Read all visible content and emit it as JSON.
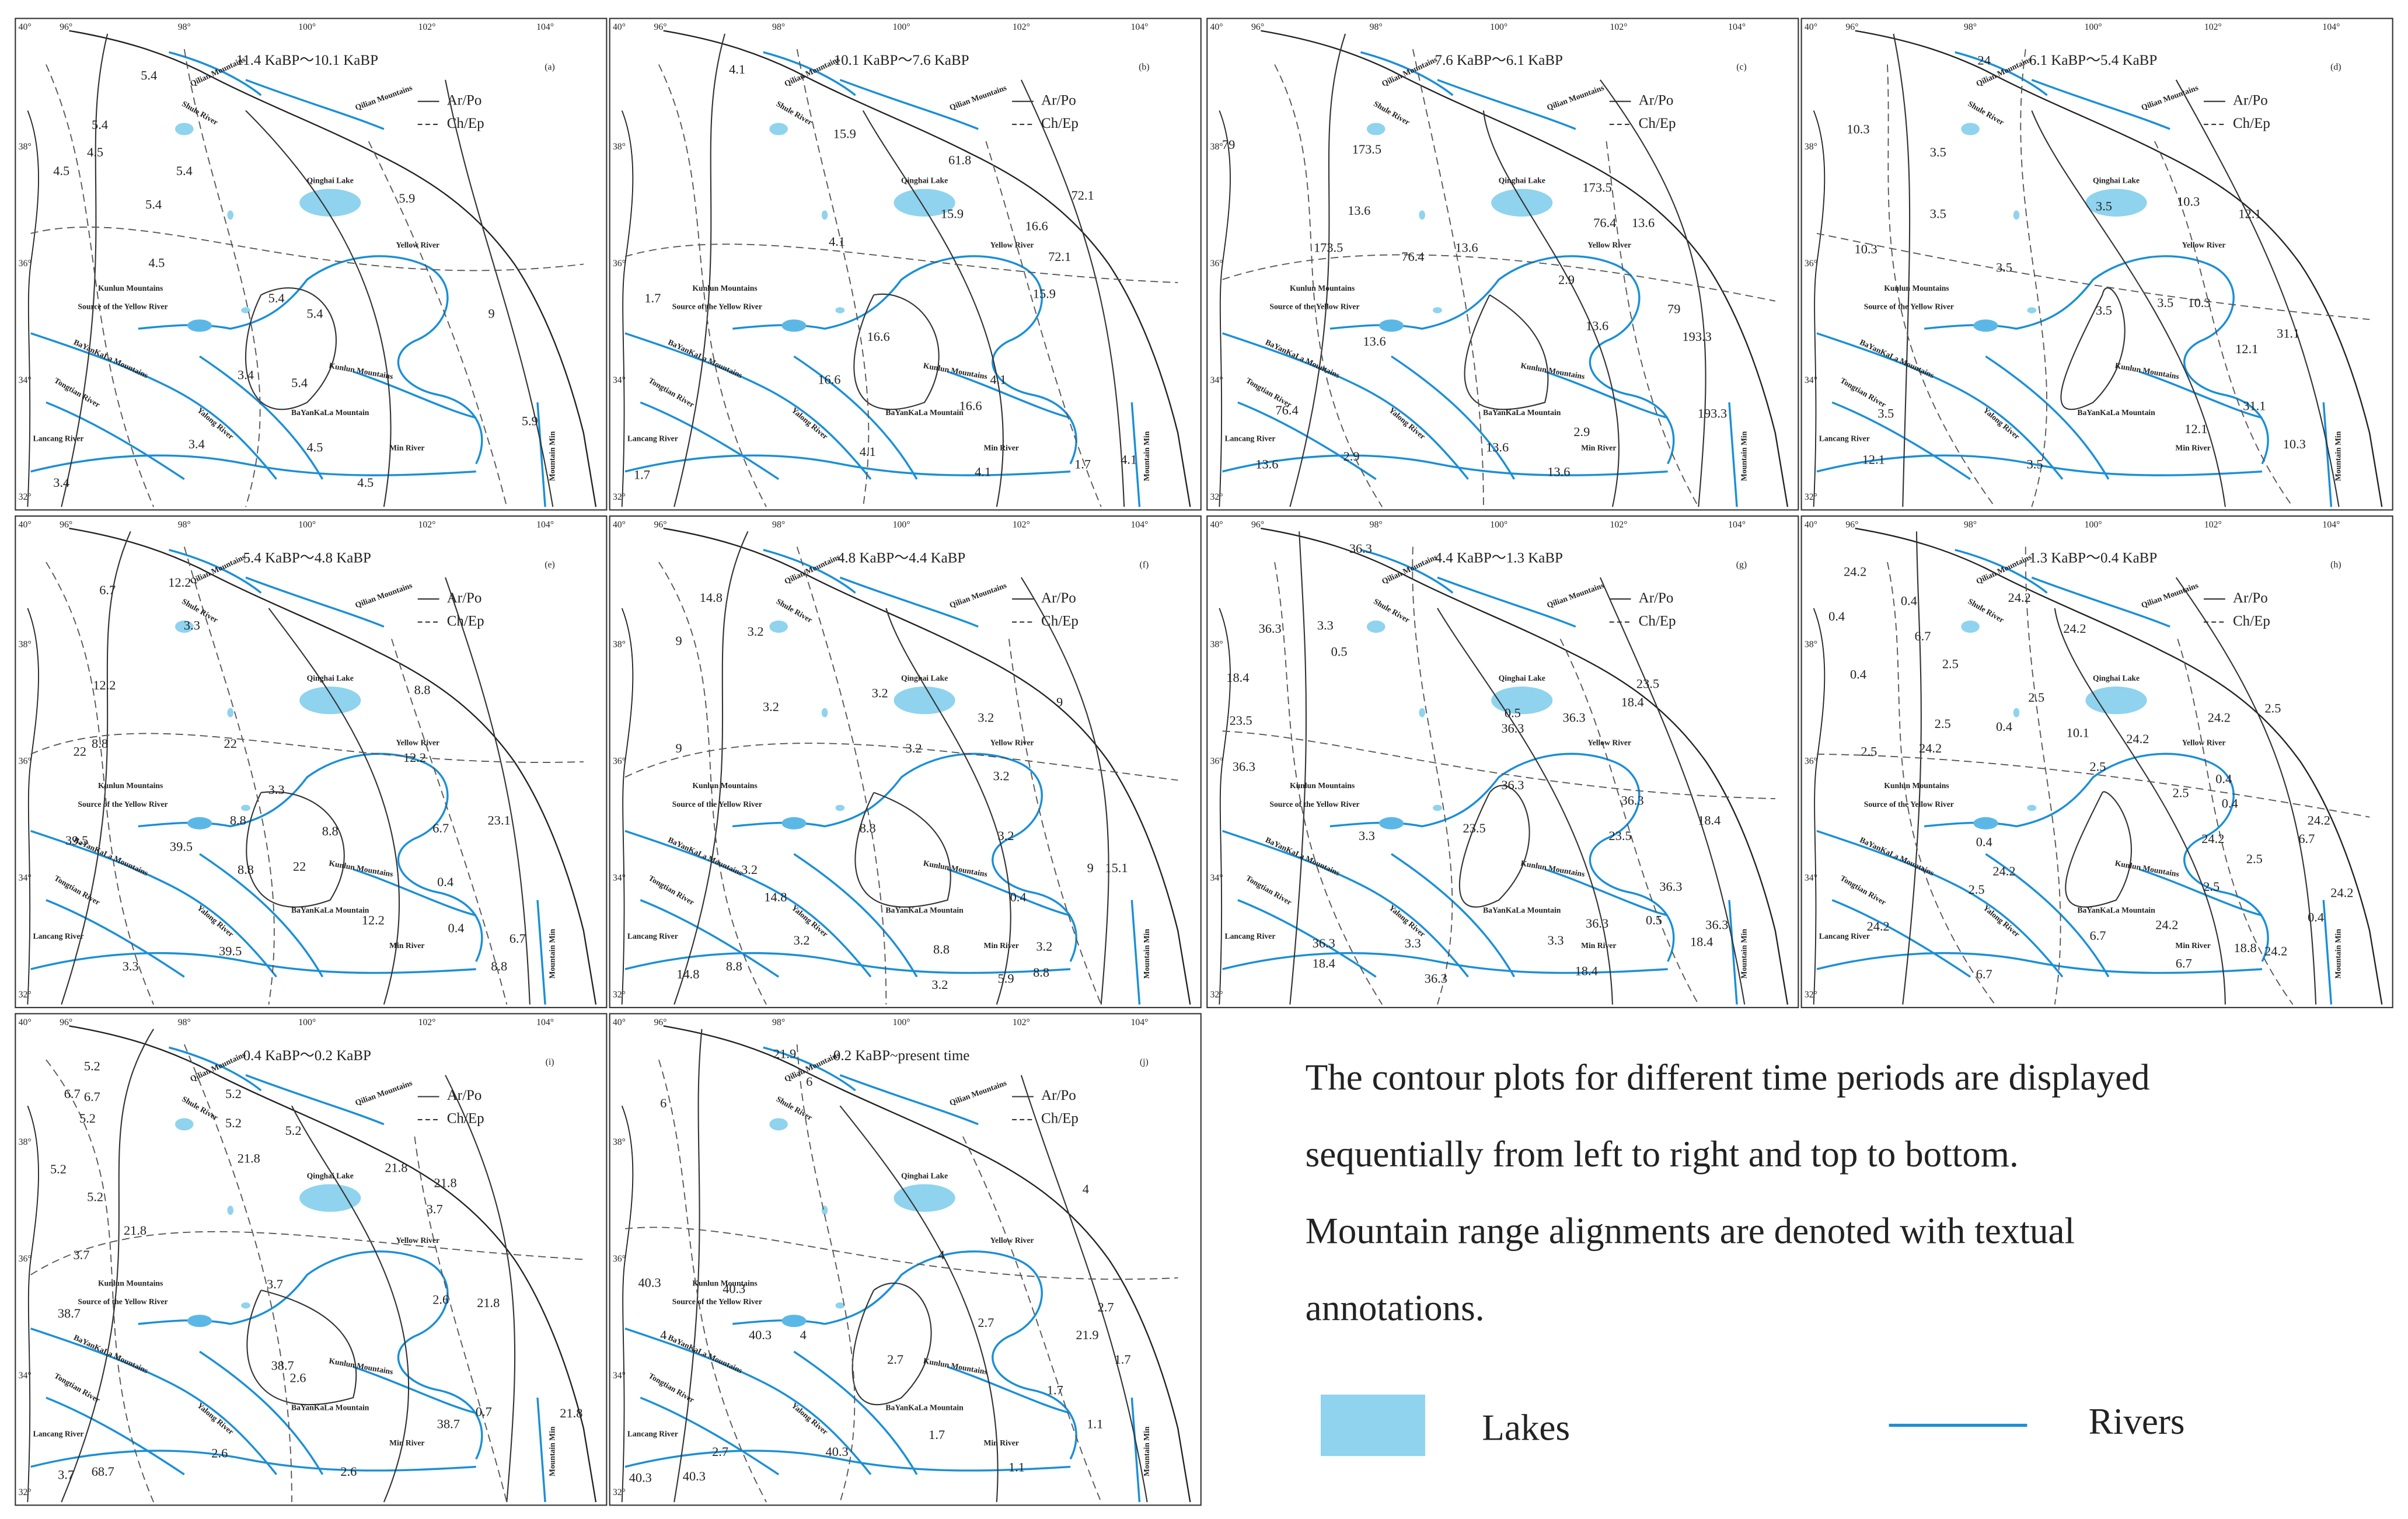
{
  "axes": {
    "lat_labels": [
      "40°",
      "38°",
      "36°",
      "34°",
      "32°"
    ],
    "lon_labels": [
      "96°",
      "98°",
      "100°",
      "102°",
      "104°"
    ]
  },
  "legend": [
    "Ar/Po",
    "Ch/Ep"
  ],
  "place_names": [
    "Qilian Mountains",
    "Qilian Mountains",
    "Shule River",
    "Qinghai Lake",
    "Yellow River",
    "Kunlun Mountains",
    "Source of the Yellow River",
    "BaYanKaLa Mountains",
    "Kunlun Mountains",
    "Tongtian River",
    "Yalong River",
    "BaYanKaLa Mountain",
    "Min River",
    "Lancang River",
    "Mountain Min"
  ],
  "panels": [
    {
      "title": "11.4 KaBP～10.1 KaBP",
      "label": "(a)",
      "contours": [
        "5.4",
        "5.4",
        "4.5",
        "5.4",
        "4.5",
        "5.4",
        "5.9",
        "4.5",
        "5.4",
        "5.4",
        "3.4",
        "5.4",
        "3.4",
        "4.5",
        "4.5",
        "5.9",
        "9",
        "3.4"
      ]
    },
    {
      "title": "10.1 KaBP～7.6 KaBP",
      "label": "(b)",
      "contours": [
        "4.1",
        "15.9",
        "1.7",
        "4.1",
        "61.8",
        "15.9",
        "72.1",
        "16.6",
        "72.1",
        "15.9",
        "16.6",
        "16.6",
        "4.1",
        "16.6",
        "4.1",
        "4.1",
        "1.7",
        "4.1",
        "1.7"
      ]
    },
    {
      "title": "7.6 KaBP～6.1 KaBP",
      "label": "(c)",
      "contours": [
        "173.5",
        "13.6",
        "79",
        "173.5",
        "76.4",
        "13.6",
        "173.5",
        "76.4",
        "13.6",
        "2.9",
        "13.6",
        "79",
        "193.3",
        "13.6",
        "76.4",
        "13.6",
        "2.9",
        "13.6",
        "193.3",
        "13.6",
        "2.9"
      ]
    },
    {
      "title": "6.1 KaBP～5.4 KaBP",
      "label": "(d)",
      "contours": [
        "24",
        "10.3",
        "3.5",
        "3.5",
        "3.5",
        "10.3",
        "12.1",
        "10.3",
        "3.5",
        "3.5",
        "3.5",
        "10.3",
        "31.1",
        "12.1",
        "3.5",
        "31.1",
        "12.1",
        "12.1",
        "10.3",
        "3.5"
      ]
    },
    {
      "title": "5.4 KaBP～4.8 KaBP",
      "label": "(e)",
      "contours": [
        "6.7",
        "12.2",
        "3.3",
        "12.2",
        "8.8",
        "22",
        "22",
        "8.8",
        "12.2",
        "3.3",
        "6.7",
        "23.1",
        "8.8",
        "39.5",
        "39.5",
        "8.8",
        "8.8",
        "22",
        "0.4",
        "12.2",
        "0.4",
        "6.7",
        "39.5",
        "8.8",
        "3.3"
      ]
    },
    {
      "title": "4.8 KaBP～4.4 KaBP",
      "label": "(f)",
      "contours": [
        "14.8",
        "3.2",
        "9",
        "3.2",
        "3.2",
        "3.2",
        "9",
        "3.2",
        "3.2",
        "9",
        "8.8",
        "3.2",
        "3.2",
        "14.8",
        "0.4",
        "9",
        "15.1",
        "3.2",
        "8.8",
        "3.2",
        "14.8",
        "8.8",
        "8.8",
        "5.9",
        "3.2"
      ]
    },
    {
      "title": "4.4 KaBP～1.3 KaBP",
      "label": "(g)",
      "contours": [
        "36.3",
        "36.3",
        "3.3",
        "0.5",
        "18.4",
        "23.5",
        "36.3",
        "23.5",
        "18.4",
        "0.5",
        "36.3",
        "36.3",
        "36.3",
        "36.3",
        "23.5",
        "23.5",
        "18.4",
        "3.3",
        "36.3",
        "36.3",
        "0.5",
        "3.3",
        "36.3",
        "18.4",
        "36.3",
        "18.4",
        "36.3",
        "18.4",
        "3.3"
      ]
    },
    {
      "title": "1.3 KaBP～0.4 KaBP",
      "label": "(h)",
      "contours": [
        "24.2",
        "0.4",
        "24.2",
        "0.4",
        "6.7",
        "24.2",
        "0.4",
        "2.5",
        "2.5",
        "24.2",
        "2.5",
        "2.5",
        "0.4",
        "10.1",
        "24.2",
        "2.5",
        "24.2",
        "2.5",
        "0.4",
        "2.5",
        "0.4",
        "24.2",
        "0.4",
        "24.2",
        "6.7",
        "24.2",
        "2.5",
        "2.5",
        "2.5",
        "24.2",
        "24.2",
        "24.2",
        "0.4",
        "6.7",
        "18.8",
        "24.2",
        "6.7",
        "6.7"
      ]
    },
    {
      "title": "0.4 KaBP～0.2 KaBP",
      "label": "(i)",
      "contours": [
        "5.2",
        "6.7",
        "6.7",
        "5.2",
        "5.2",
        "5.2",
        "5.2",
        "21.8",
        "21.8",
        "21.8",
        "3.7",
        "5.2",
        "5.2",
        "21.8",
        "3.7",
        "3.7",
        "2.6",
        "21.8",
        "38.7",
        "38.7",
        "2.6",
        "0.7",
        "38.7",
        "21.8",
        "2.6",
        "2.6",
        "3.7",
        "68.7"
      ]
    },
    {
      "title": "0.2 KaBP~present time",
      "label": "(j)",
      "contours": [
        "21.9",
        "6",
        "6",
        "4",
        "4",
        "40.3",
        "40.3",
        "40.3",
        "4",
        "4",
        "2.7",
        "2.7",
        "21.9",
        "1.7",
        "2.7",
        "1.7",
        "1.1",
        "1.7",
        "40.3",
        "2.7",
        "40.3",
        "1.1",
        "40.3"
      ]
    }
  ],
  "caption": [
    "The contour plots for different time periods are displayed",
    "sequentially from left to right and top to bottom.",
    "Mountain range alignments are denoted with textual",
    "annotations."
  ],
  "key": {
    "lakes": "Lakes",
    "rivers": "Rivers"
  }
}
